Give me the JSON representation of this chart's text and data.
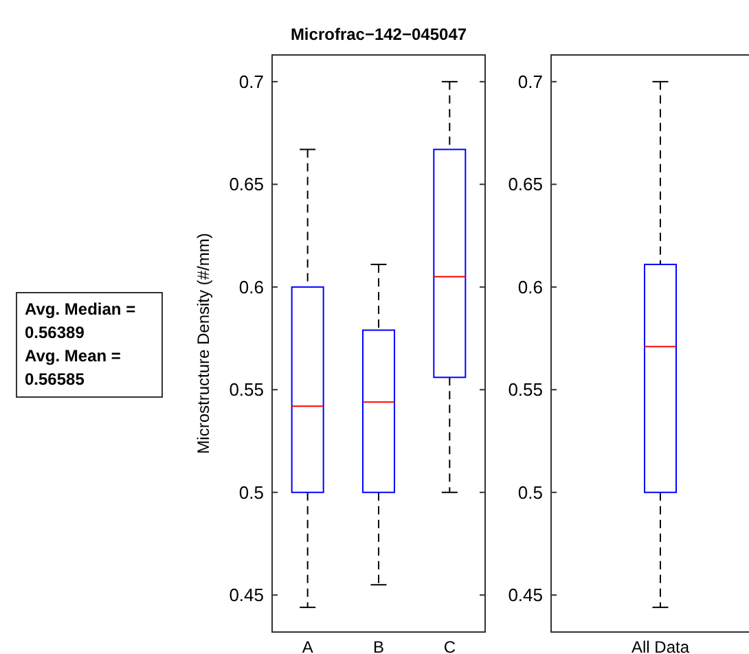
{
  "chart_data": [
    {
      "type": "box",
      "title": "Microfrac−142−045047",
      "ylabel": "Microstructure Density (#/mm)",
      "categories": [
        "A",
        "B",
        "C"
      ],
      "color": "#0000ff",
      "ylim": [
        0.432,
        0.713
      ],
      "yticks": [
        0.45,
        0.5,
        0.55,
        0.6,
        0.65,
        0.7
      ],
      "annotations": [
        "Avg. Median =\n0.56389\nAvg. Mean =\n0.56585"
      ],
      "boxes": [
        {
          "low": 0.444,
          "q1": 0.5,
          "median": 0.542,
          "q3": 0.6,
          "high": 0.667
        },
        {
          "low": 0.455,
          "q1": 0.5,
          "median": 0.544,
          "q3": 0.579,
          "high": 0.611
        },
        {
          "low": 0.5,
          "q1": 0.556,
          "median": 0.605,
          "q3": 0.667,
          "high": 0.7
        }
      ]
    },
    {
      "type": "box",
      "categories": [
        "All Data"
      ],
      "color": "#0000ff",
      "ylim": [
        0.432,
        0.713
      ],
      "yticks": [
        0.45,
        0.5,
        0.55,
        0.6,
        0.65,
        0.7
      ],
      "boxes": [
        {
          "low": 0.444,
          "q1": 0.5,
          "median": 0.571,
          "q3": 0.611,
          "high": 0.7
        }
      ]
    }
  ]
}
